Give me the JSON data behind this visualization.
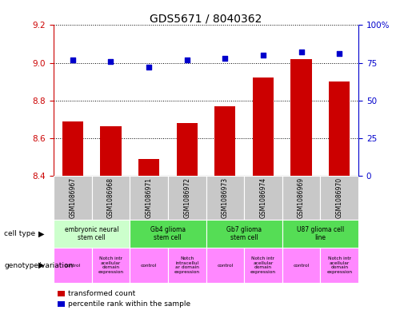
{
  "title": "GDS5671 / 8040362",
  "samples": [
    "GSM1086967",
    "GSM1086968",
    "GSM1086971",
    "GSM1086972",
    "GSM1086973",
    "GSM1086974",
    "GSM1086969",
    "GSM1086970"
  ],
  "transformed_count": [
    8.69,
    8.665,
    8.49,
    8.68,
    8.77,
    8.92,
    9.02,
    8.9
  ],
  "percentile_rank": [
    77,
    76,
    72,
    77,
    78,
    80,
    82,
    81
  ],
  "ylim_left": [
    8.4,
    9.2
  ],
  "ylim_right": [
    0,
    100
  ],
  "yticks_left": [
    8.4,
    8.6,
    8.8,
    9.0,
    9.2
  ],
  "yticks_right": [
    0,
    25,
    50,
    75,
    100
  ],
  "bar_color": "#cc0000",
  "dot_color": "#0000cc",
  "background_color": "#ffffff",
  "sample_bg_color": "#c8c8c8",
  "left_axis_color": "#cc0000",
  "right_axis_color": "#0000cc",
  "cell_type_light_green": "#ccffcc",
  "cell_type_green": "#55dd55",
  "genotype_pink": "#ff88ff",
  "ct_groups": [
    {
      "s": 0,
      "e": 1,
      "label": "embryonic neural\nstem cell",
      "color": "#ccffcc"
    },
    {
      "s": 2,
      "e": 3,
      "label": "Gb4 glioma\nstem cell",
      "color": "#55dd55"
    },
    {
      "s": 4,
      "e": 5,
      "label": "Gb7 glioma\nstem cell",
      "color": "#55dd55"
    },
    {
      "s": 6,
      "e": 7,
      "label": "U87 glioma cell\nline",
      "color": "#55dd55"
    }
  ],
  "geno_labels": [
    "control",
    "Notch intr\nacellular\ndomain\nexpression",
    "control",
    "Notch\nintracellul\nar domain\nexpression",
    "control",
    "Notch intr\nacellular\ndomain\nexpression",
    "control",
    "Notch intr\nacellular\ndomain\nexpression"
  ]
}
